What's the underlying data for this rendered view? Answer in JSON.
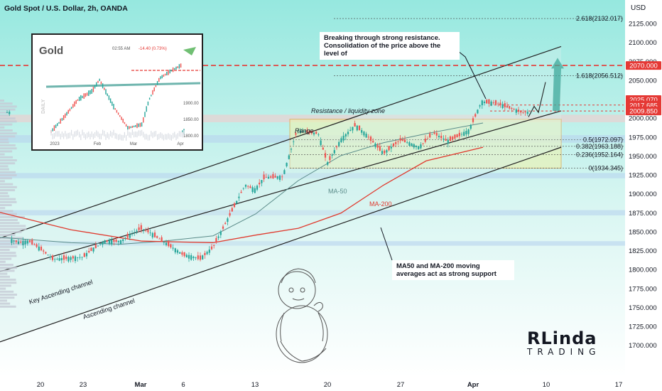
{
  "header": {
    "title": "Gold Spot / U.S. Dollar, 2h, OANDA",
    "currency": "USD"
  },
  "chart_data": {
    "type": "candlestick",
    "title": "Gold Spot / U.S. Dollar, 2h, OANDA",
    "ylabel": "USD",
    "ylim": [
      1690,
      2150
    ],
    "y_ticks": [
      2125,
      2100,
      2075,
      2050,
      2025,
      2000,
      1975,
      1950,
      1925,
      1900,
      1875,
      1850,
      1825,
      1800,
      1775,
      1750,
      1725,
      1700
    ],
    "x_ticks": [
      "20",
      "23",
      "Mar",
      "6",
      "13",
      "20",
      "27",
      "Apr",
      "10",
      "17"
    ],
    "price_path": [
      {
        "t": "20",
        "v": 1840
      },
      {
        "t": "21",
        "v": 1836
      },
      {
        "t": "22",
        "v": 1838
      },
      {
        "t": "23",
        "v": 1828
      },
      {
        "t": "24",
        "v": 1814
      },
      {
        "t": "27",
        "v": 1817
      },
      {
        "t": "28",
        "v": 1826
      },
      {
        "t": "Mar",
        "v": 1838
      },
      {
        "t": "2",
        "v": 1838
      },
      {
        "t": "3",
        "v": 1855
      },
      {
        "t": "6",
        "v": 1850
      },
      {
        "t": "7",
        "v": 1820
      },
      {
        "t": "8",
        "v": 1815
      },
      {
        "t": "9",
        "v": 1830
      },
      {
        "t": "10",
        "v": 1866
      },
      {
        "t": "13",
        "v": 1912
      },
      {
        "t": "14",
        "v": 1906
      },
      {
        "t": "15",
        "v": 1922
      },
      {
        "t": "16",
        "v": 1923
      },
      {
        "t": "17",
        "v": 1984
      },
      {
        "t": "20",
        "v": 1980
      },
      {
        "t": "21",
        "v": 1941
      },
      {
        "t": "22",
        "v": 1972
      },
      {
        "t": "23",
        "v": 1991
      },
      {
        "t": "24",
        "v": 1979
      },
      {
        "t": "27",
        "v": 1954
      },
      {
        "t": "28",
        "v": 1972
      },
      {
        "t": "29",
        "v": 1962
      },
      {
        "t": "30",
        "v": 1981
      },
      {
        "t": "31",
        "v": 1970
      },
      {
        "t": "Apr",
        "v": 1984
      },
      {
        "t": "4",
        "v": 2022
      },
      {
        "t": "5",
        "v": 2020
      },
      {
        "t": "6",
        "v": 2008
      }
    ],
    "series": [
      {
        "name": "MA-50",
        "color": "#5b8c8a",
        "values": [
          1843,
          1836,
          1834,
          1838,
          1845,
          1874,
          1918,
          1951,
          1968,
          1980,
          1994
        ]
      },
      {
        "name": "MA-200",
        "color": "#e03a2e",
        "values": [
          1876,
          1853,
          1838,
          1836,
          1846,
          1855,
          1875,
          1912,
          1944,
          1962
        ]
      }
    ],
    "horizontal_levels": [
      {
        "label": "2.618(2132.017)",
        "value": 2132.017
      },
      {
        "label": "1.618(2056.512)",
        "value": 2056.512
      },
      {
        "label": "0.5(1972.097)",
        "value": 1972.097
      },
      {
        "label": "0.382(1963.188)",
        "value": 1963.188
      },
      {
        "label": "0.236(1952.164)",
        "value": 1952.164
      },
      {
        "label": "0(1934.345)",
        "value": 1934.345
      }
    ],
    "price_labels": [
      {
        "text": "2070.000",
        "value": 2070.0,
        "color": "#e53935"
      },
      {
        "text": "2025.070",
        "value": 2025.07,
        "color": "#e53935"
      },
      {
        "text": "2017.685",
        "value": 2017.685,
        "color": "#e53935"
      },
      {
        "text": "2009.850",
        "value": 2009.85,
        "color": "#e53935"
      }
    ],
    "annotations": {
      "resistance": "Resistance / liquidity zone",
      "range": "Range",
      "ma50": "MA-50",
      "ma200": "MA-200",
      "key_channel": "Key Ascending channel",
      "channel": "Ascending channel"
    },
    "inset": {
      "title": "Gold",
      "time": "02:55 AM",
      "change": "-14.40 (0.73%)",
      "side_label": "DAILY",
      "x_ticks": [
        "2023",
        "Feb",
        "Mar",
        "Apr"
      ],
      "y_ticks": [
        "1900.00",
        "1850.00",
        "1800.00"
      ]
    }
  },
  "notes": {
    "breakout": "Breaking through strong resistance. Consolidation of the price above the level of",
    "ma_support": "MA50 and MA-200 moving averages act as strong support"
  },
  "logo": {
    "line1": "RLinda",
    "line2": "TRADING"
  },
  "colors": {
    "bg_top": "#96e8df",
    "bg_bottom": "#ffffff",
    "bull": "#26a69a",
    "bear": "#ef5350",
    "accent_red": "#e53935"
  }
}
